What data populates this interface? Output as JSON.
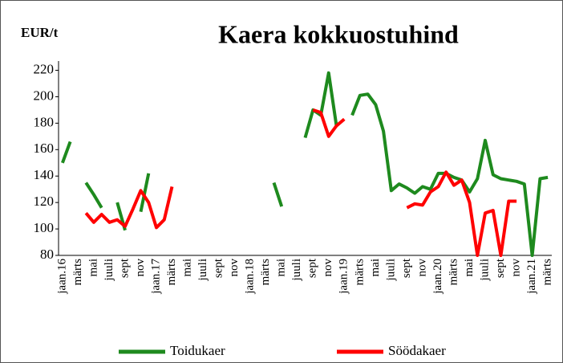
{
  "chart_data": {
    "type": "line",
    "title": "Kaera kokkuostuhind",
    "y_label": "EUR/t",
    "categories": [
      "jaan.16",
      null,
      "märts",
      null,
      "mai",
      null,
      "juuli",
      null,
      "sept",
      null,
      "nov",
      null,
      "jaan.17",
      null,
      "märts",
      null,
      "mai",
      null,
      "juuli",
      null,
      "sept",
      null,
      "nov",
      null,
      "jaan.18",
      null,
      "märts",
      null,
      "mai",
      null,
      "juuli",
      null,
      "sept",
      null,
      "nov",
      null,
      "jaan.19",
      null,
      "märts",
      null,
      "mai",
      null,
      "juuli",
      null,
      "sept",
      null,
      "nov",
      null,
      "jaan.20",
      null,
      "märts",
      null,
      "mai",
      null,
      "juuli",
      null,
      "sept",
      null,
      "nov",
      null,
      "jaan.21",
      null,
      "märts"
    ],
    "series": [
      {
        "name": "Toidukaer",
        "color": "#1e8a1e",
        "values": [
          150,
          166,
          null,
          135,
          126,
          116,
          null,
          120,
          99,
          null,
          113,
          142,
          null,
          null,
          null,
          null,
          null,
          null,
          null,
          null,
          null,
          null,
          null,
          null,
          null,
          null,
          null,
          135,
          117,
          null,
          null,
          169,
          190,
          186,
          218,
          178,
          null,
          186,
          201,
          202,
          194,
          174,
          129,
          134,
          131,
          127,
          132,
          130,
          142,
          142,
          139,
          137,
          128,
          138,
          167,
          141,
          138,
          137,
          136,
          134,
          80,
          138,
          139
        ]
      },
      {
        "name": "Söödakaer",
        "color": "#ff0000",
        "values": [
          null,
          null,
          null,
          112,
          105,
          111,
          105,
          107,
          102,
          115,
          129,
          120,
          101,
          107,
          132,
          null,
          null,
          null,
          null,
          null,
          null,
          null,
          null,
          null,
          null,
          null,
          null,
          null,
          null,
          null,
          null,
          null,
          190,
          188,
          170,
          178,
          183,
          null,
          null,
          null,
          null,
          null,
          null,
          null,
          116,
          119,
          118,
          128,
          132,
          143,
          133,
          137,
          120,
          80,
          112,
          114,
          80,
          121,
          121,
          null,
          null,
          null,
          null
        ]
      }
    ],
    "ylim": [
      80,
      227
    ],
    "yticks": [
      80,
      100,
      120,
      140,
      160,
      180,
      200,
      220
    ],
    "grid": false,
    "legend": "bottom"
  }
}
